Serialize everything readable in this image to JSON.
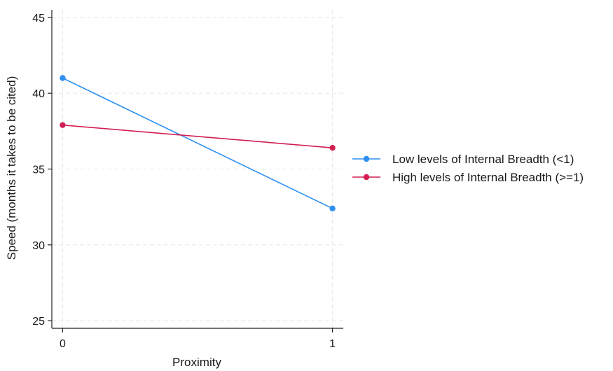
{
  "chart_data": {
    "type": "line",
    "title": "",
    "xlabel": "Proximity",
    "ylabel": "Speed (months it takes to be cited)",
    "x": [
      0,
      1
    ],
    "xticks": [
      0,
      1
    ],
    "xtick_labels": [
      "0",
      "1"
    ],
    "xlim": [
      -0.04,
      1.04
    ],
    "ylim": [
      24.5,
      45.5
    ],
    "yticks": [
      25,
      30,
      35,
      40,
      45
    ],
    "ytick_labels": [
      "25",
      "30",
      "35",
      "40",
      "45"
    ],
    "grid": true,
    "legend_position": "right",
    "series": [
      {
        "name": "Low levels of Internal Breadth (<1)",
        "color": "#2e8ff0",
        "values": [
          41.0,
          32.4
        ]
      },
      {
        "name": "High levels of Internal Breadth (>=1)",
        "color": "#d21f52",
        "values": [
          37.9,
          36.4
        ]
      }
    ]
  }
}
